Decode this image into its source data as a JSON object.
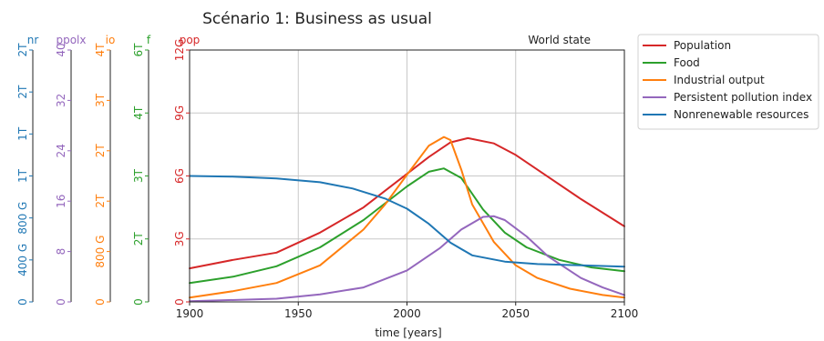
{
  "chart_data": {
    "type": "line",
    "title": "Scénario 1: Business as usual",
    "annotation": "World state",
    "xlabel": "time [years]",
    "xlim": [
      1900,
      2100
    ],
    "xticks": [
      "1900",
      "1950",
      "2000",
      "2050",
      "2100"
    ],
    "grid": true,
    "legend_position": "outside-right",
    "axes": [
      {
        "key": "nr",
        "label": "nr",
        "color": "#1f77b4",
        "max": 2,
        "ticks": [
          "0",
          "400 G",
          "800 G",
          "1T",
          "1T",
          "2T",
          "2T"
        ]
      },
      {
        "key": "ppolx",
        "label": "ppolx",
        "color": "#9467bd",
        "max": 40,
        "ticks": [
          "0",
          "8",
          "16",
          "24",
          "32",
          "40"
        ]
      },
      {
        "key": "io",
        "label": "io",
        "color": "#ff7f0e",
        "max": 4,
        "ticks": [
          "0",
          "800 G",
          "2T",
          "2T",
          "3T",
          "4T"
        ]
      },
      {
        "key": "f",
        "label": "f",
        "color": "#2ca02c",
        "max": 6,
        "ticks": [
          "0",
          "2T",
          "3T",
          "4T",
          "6T"
        ]
      },
      {
        "key": "pop",
        "label": "pop",
        "color": "#d62728",
        "max": 12,
        "ticks": [
          "0",
          "3G",
          "6G",
          "9G",
          "12G"
        ]
      }
    ],
    "series": [
      {
        "name": "Population",
        "axis": "pop",
        "color": "#d62728",
        "x": [
          1900,
          1920,
          1940,
          1960,
          1980,
          2000,
          2010,
          2020,
          2028,
          2040,
          2050,
          2060,
          2080,
          2100
        ],
        "y": [
          1.6,
          2.0,
          2.35,
          3.3,
          4.5,
          6.1,
          6.9,
          7.6,
          7.8,
          7.55,
          7.0,
          6.3,
          4.9,
          3.6
        ]
      },
      {
        "name": "Food",
        "axis": "f",
        "color": "#2ca02c",
        "x": [
          1900,
          1920,
          1940,
          1960,
          1980,
          2000,
          2010,
          2017,
          2025,
          2035,
          2045,
          2055,
          2070,
          2085,
          2100
        ],
        "y": [
          0.45,
          0.6,
          0.85,
          1.3,
          1.95,
          2.75,
          3.1,
          3.18,
          2.95,
          2.2,
          1.65,
          1.3,
          1.0,
          0.82,
          0.73
        ]
      },
      {
        "name": "Industrial output",
        "axis": "io",
        "color": "#ff7f0e",
        "x": [
          1900,
          1920,
          1940,
          1960,
          1980,
          1990,
          2000,
          2010,
          2017,
          2020,
          2025,
          2030,
          2040,
          2050,
          2060,
          2075,
          2090,
          2100
        ],
        "y": [
          0.07,
          0.17,
          0.3,
          0.58,
          1.15,
          1.55,
          2.02,
          2.48,
          2.62,
          2.57,
          2.1,
          1.55,
          0.95,
          0.58,
          0.38,
          0.21,
          0.11,
          0.07
        ]
      },
      {
        "name": "Persistent pollution index",
        "axis": "ppolx",
        "color": "#9467bd",
        "x": [
          1900,
          1940,
          1960,
          1980,
          2000,
          2015,
          2025,
          2035,
          2040,
          2045,
          2055,
          2065,
          2080,
          2090,
          2100
        ],
        "y": [
          0.1,
          0.5,
          1.2,
          2.3,
          5.0,
          8.5,
          11.5,
          13.5,
          13.6,
          13.0,
          10.4,
          7.2,
          3.8,
          2.3,
          1.1
        ]
      },
      {
        "name": "Nonrenewable resources",
        "axis": "nr",
        "color": "#1f77b4",
        "x": [
          1900,
          1920,
          1940,
          1960,
          1975,
          1990,
          2000,
          2010,
          2020,
          2030,
          2045,
          2060,
          2080,
          2100
        ],
        "y": [
          1.0,
          0.995,
          0.98,
          0.95,
          0.9,
          0.82,
          0.74,
          0.62,
          0.47,
          0.37,
          0.32,
          0.3,
          0.29,
          0.28
        ]
      }
    ]
  }
}
